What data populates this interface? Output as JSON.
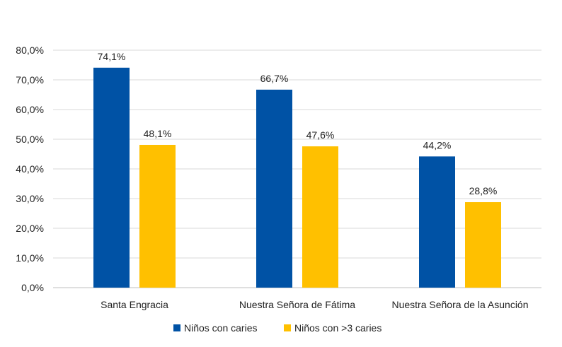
{
  "chart_data": {
    "type": "bar",
    "title": "",
    "xlabel": "",
    "ylabel": "",
    "categories": [
      "Santa Engracia",
      "Nuestra Señora de Fátima",
      "Nuestra Señora de la Asunción"
    ],
    "series": [
      {
        "name": "Niños con caries",
        "values": [
          74.1,
          66.7,
          44.2
        ],
        "labels": [
          "74,1%",
          "66,7%",
          "44,2%"
        ],
        "color": "#0052A5"
      },
      {
        "name": "Niños con >3 caries",
        "values": [
          48.1,
          47.6,
          28.8
        ],
        "labels": [
          "48,1%",
          "47,6%",
          "28,8%"
        ],
        "color": "#FFC000"
      }
    ],
    "ylim": [
      0,
      80
    ],
    "yticks": [
      0,
      10,
      20,
      30,
      40,
      50,
      60,
      70,
      80
    ],
    "ytick_labels": [
      "0,0%",
      "10,0%",
      "20,0%",
      "30,0%",
      "40,0%",
      "50,0%",
      "60,0%",
      "70,0%",
      "80,0%"
    ],
    "grid": true,
    "legend_position": "bottom"
  }
}
